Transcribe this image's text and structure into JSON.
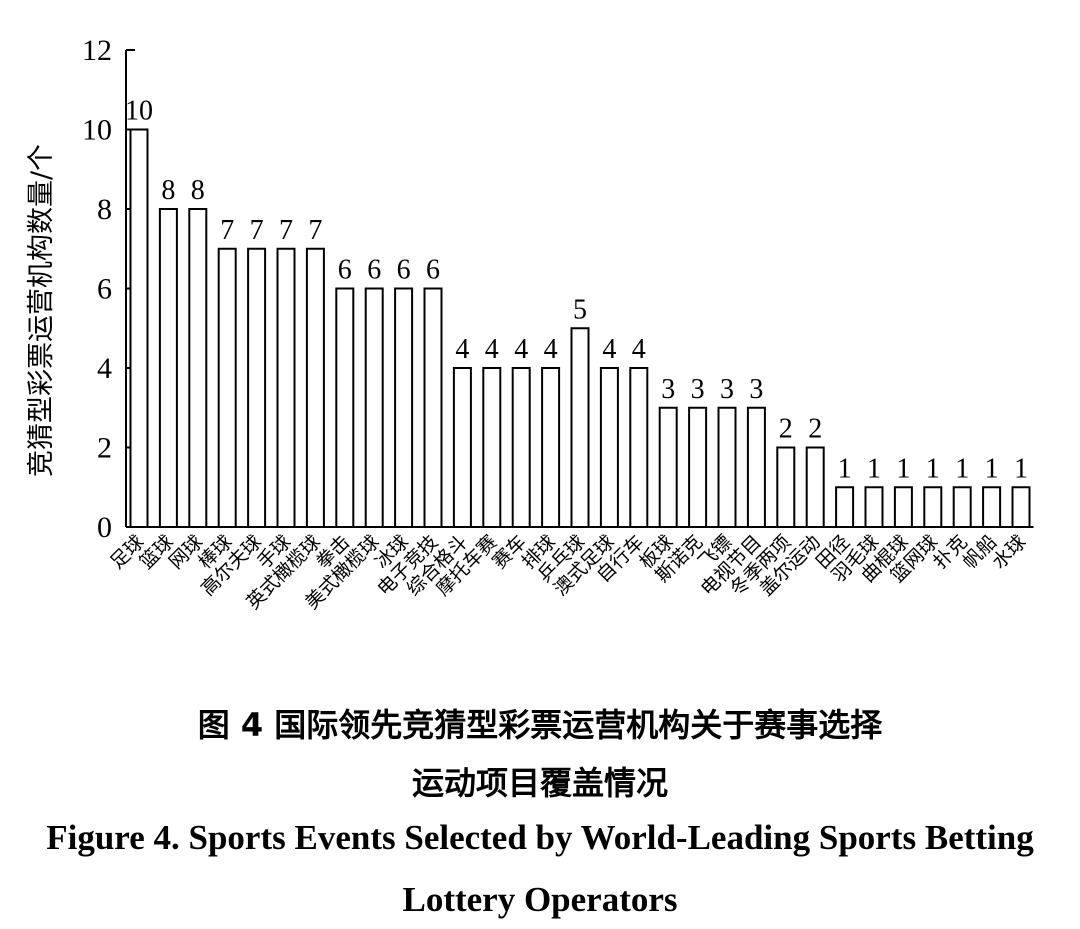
{
  "chart_data": {
    "type": "bar",
    "ylabel": "竞猜型彩票运营机构数量/个",
    "xlabel": "",
    "ylim": [
      0,
      12
    ],
    "yticks": [
      0,
      2,
      4,
      6,
      8,
      10,
      12
    ],
    "grid": false,
    "categories": [
      "足球",
      "篮球",
      "网球",
      "棒球",
      "高尔夫球",
      "手球",
      "英式橄榄球",
      "拳击",
      "美式橄榄球",
      "冰球",
      "电子竞技",
      "综合格斗",
      "摩托车赛",
      "赛车",
      "排球",
      "乒乓球",
      "澳式足球",
      "自行车",
      "板球",
      "斯诺克",
      "飞镖",
      "电视节目",
      "冬季两项",
      "盖尔运动",
      "田径",
      "羽毛球",
      "曲棍球",
      "篮网球",
      "扑克",
      "帆船",
      "水球"
    ],
    "values": [
      10,
      8,
      8,
      7,
      7,
      7,
      7,
      6,
      6,
      6,
      6,
      4,
      4,
      4,
      4,
      5,
      4,
      4,
      3,
      3,
      3,
      3,
      2,
      2,
      1,
      1,
      1,
      1,
      1,
      1,
      1
    ]
  },
  "caption": {
    "cn_line1": "图 4   国际领先竞猜型彩票运营机构关于赛事选择",
    "cn_line2": "运动项目覆盖情况",
    "en_line1": "Figure 4.    Sports Events Selected by World-Leading Sports Betting",
    "en_line2": "Lottery Operators"
  }
}
